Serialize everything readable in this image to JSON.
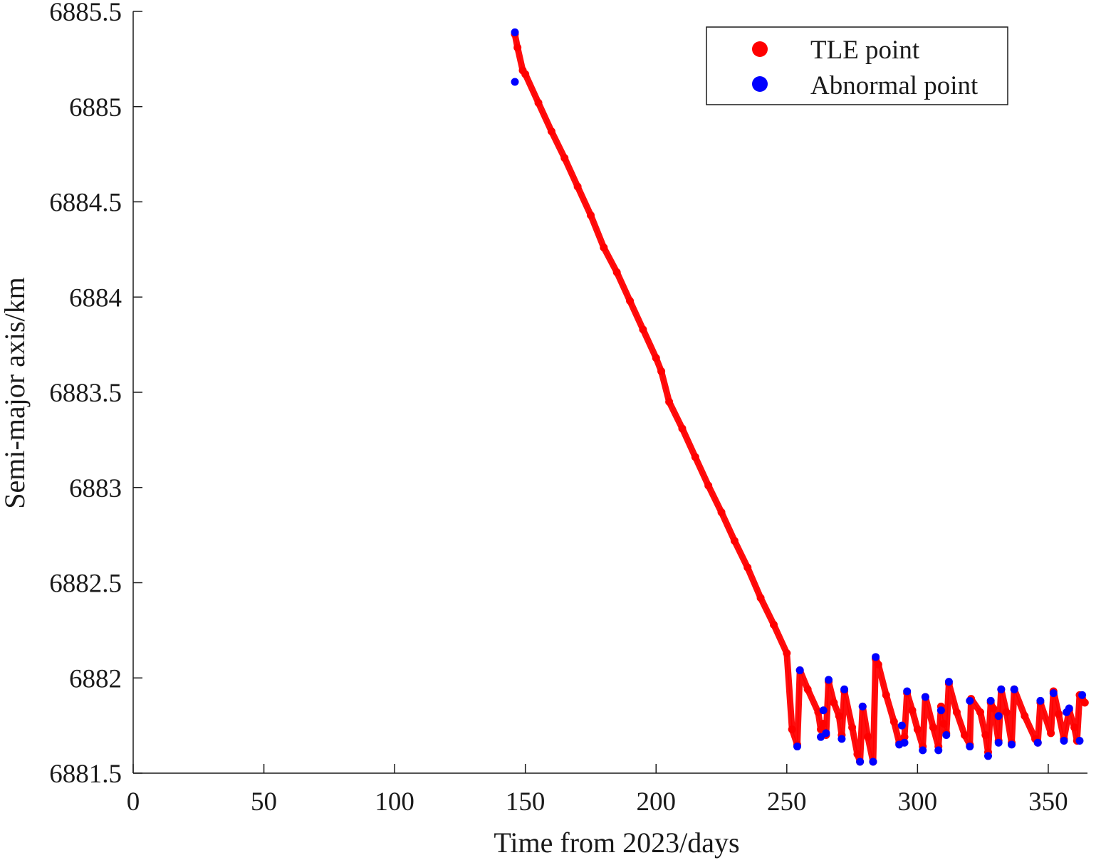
{
  "chart_data": {
    "type": "scatter",
    "title": "",
    "xlabel": "Time from 2023/days",
    "ylabel": "Semi-major axis/km",
    "xlim": [
      0,
      365
    ],
    "ylim": [
      6881.5,
      6885.5
    ],
    "x_ticks": [
      0,
      50,
      100,
      150,
      200,
      250,
      300,
      350
    ],
    "y_ticks": [
      6881.5,
      6882,
      6882.5,
      6883,
      6883.5,
      6884,
      6884.5,
      6885,
      6885.5
    ],
    "x_tick_labels": [
      "0",
      "50",
      "100",
      "150",
      "200",
      "250",
      "300",
      "350"
    ],
    "y_tick_labels": [
      "6881.5",
      "6882",
      "6882.5",
      "6883",
      "6883.5",
      "6884",
      "6884.5",
      "6885",
      "6885.5"
    ],
    "grid": false,
    "legend_position": "top-right",
    "series": [
      {
        "name": "TLE point",
        "color": "#ff0000",
        "mode": "lines+markers",
        "points": [
          [
            146,
            6885.38
          ],
          [
            147,
            6885.31
          ],
          [
            149,
            6885.19
          ],
          [
            150,
            6885.17
          ],
          [
            155,
            6885.02
          ],
          [
            160,
            6884.87
          ],
          [
            165,
            6884.73
          ],
          [
            170,
            6884.58
          ],
          [
            175,
            6884.43
          ],
          [
            180,
            6884.26
          ],
          [
            185,
            6884.13
          ],
          [
            190,
            6883.98
          ],
          [
            195,
            6883.83
          ],
          [
            200,
            6883.68
          ],
          [
            202,
            6883.61
          ],
          [
            205,
            6883.45
          ],
          [
            210,
            6883.31
          ],
          [
            215,
            6883.16
          ],
          [
            220,
            6883.01
          ],
          [
            225,
            6882.87
          ],
          [
            230,
            6882.72
          ],
          [
            235,
            6882.58
          ],
          [
            240,
            6882.42
          ],
          [
            245,
            6882.28
          ],
          [
            250,
            6882.13
          ],
          [
            252,
            6881.73
          ],
          [
            254,
            6881.65
          ],
          [
            255,
            6882.04
          ],
          [
            258,
            6881.94
          ],
          [
            262,
            6881.82
          ],
          [
            263,
            6881.73
          ],
          [
            264,
            6881.76
          ],
          [
            265,
            6881.7
          ],
          [
            266,
            6881.98
          ],
          [
            268,
            6881.87
          ],
          [
            270,
            6881.8
          ],
          [
            271,
            6881.7
          ],
          [
            272,
            6881.93
          ],
          [
            275,
            6881.74
          ],
          [
            277,
            6881.6
          ],
          [
            278,
            6881.56
          ],
          [
            279,
            6881.85
          ],
          [
            281,
            6881.69
          ],
          [
            283,
            6881.56
          ],
          [
            284,
            6882.1
          ],
          [
            285,
            6882.07
          ],
          [
            288,
            6881.91
          ],
          [
            291,
            6881.77
          ],
          [
            293,
            6881.66
          ],
          [
            295,
            6881.69
          ],
          [
            296,
            6881.92
          ],
          [
            298,
            6881.83
          ],
          [
            300,
            6881.73
          ],
          [
            302,
            6881.64
          ],
          [
            303,
            6881.9
          ],
          [
            306,
            6881.74
          ],
          [
            308,
            6881.64
          ],
          [
            309,
            6881.85
          ],
          [
            310,
            6881.76
          ],
          [
            311,
            6881.71
          ],
          [
            312,
            6881.97
          ],
          [
            315,
            6881.82
          ],
          [
            318,
            6881.7
          ],
          [
            320,
            6881.65
          ],
          [
            320.5,
            6881.89
          ],
          [
            324,
            6881.82
          ],
          [
            326,
            6881.7
          ],
          [
            327,
            6881.61
          ],
          [
            328,
            6881.87
          ],
          [
            329,
            6881.84
          ],
          [
            331,
            6881.67
          ],
          [
            332,
            6881.94
          ],
          [
            334,
            6881.82
          ],
          [
            336,
            6881.66
          ],
          [
            337,
            6881.94
          ],
          [
            341,
            6881.8
          ],
          [
            345,
            6881.68
          ],
          [
            346,
            6881.66
          ],
          [
            347,
            6881.87
          ],
          [
            351,
            6881.71
          ],
          [
            352,
            6881.93
          ],
          [
            354,
            6881.81
          ],
          [
            356,
            6881.68
          ],
          [
            358,
            6881.83
          ],
          [
            360,
            6881.74
          ],
          [
            361,
            6881.67
          ],
          [
            362,
            6881.91
          ],
          [
            363,
            6881.89
          ],
          [
            364,
            6881.87
          ]
        ]
      },
      {
        "name": "Abnormal point",
        "color": "#0000ff",
        "mode": "markers",
        "points": [
          [
            146,
            6885.39
          ],
          [
            146,
            6885.13
          ],
          [
            254,
            6881.64
          ],
          [
            255,
            6882.04
          ],
          [
            263,
            6881.69
          ],
          [
            264,
            6881.83
          ],
          [
            265,
            6881.71
          ],
          [
            266,
            6881.99
          ],
          [
            271,
            6881.68
          ],
          [
            272,
            6881.94
          ],
          [
            278,
            6881.56
          ],
          [
            279,
            6881.85
          ],
          [
            283,
            6881.56
          ],
          [
            284,
            6882.11
          ],
          [
            293,
            6881.65
          ],
          [
            294,
            6881.75
          ],
          [
            295,
            6881.66
          ],
          [
            296,
            6881.93
          ],
          [
            302,
            6881.62
          ],
          [
            303,
            6881.9
          ],
          [
            308,
            6881.62
          ],
          [
            309,
            6881.83
          ],
          [
            311,
            6881.7
          ],
          [
            312,
            6881.98
          ],
          [
            320,
            6881.64
          ],
          [
            320,
            6881.88
          ],
          [
            327,
            6881.59
          ],
          [
            328,
            6881.88
          ],
          [
            331,
            6881.66
          ],
          [
            331,
            6881.8
          ],
          [
            332,
            6881.94
          ],
          [
            336,
            6881.65
          ],
          [
            337,
            6881.94
          ],
          [
            346,
            6881.66
          ],
          [
            347,
            6881.88
          ],
          [
            352,
            6881.92
          ],
          [
            356,
            6881.67
          ],
          [
            357,
            6881.82
          ],
          [
            358,
            6881.84
          ],
          [
            362,
            6881.67
          ],
          [
            363,
            6881.91
          ]
        ]
      }
    ]
  }
}
